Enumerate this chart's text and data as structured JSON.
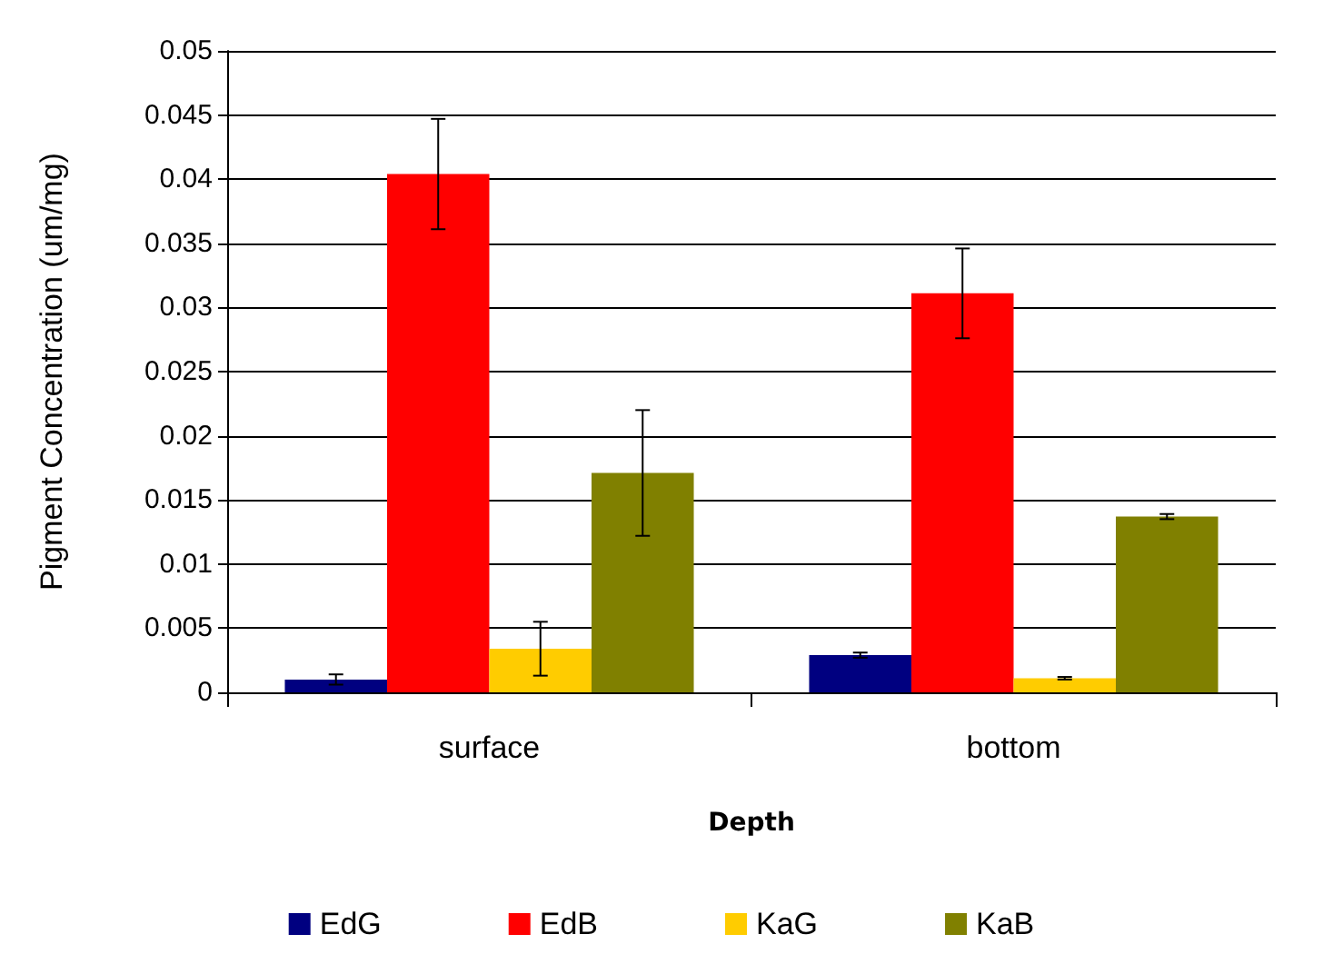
{
  "chart_data": {
    "type": "bar",
    "xlabel": "Depth",
    "ylabel": "Pigment Concentration (um/mg)",
    "categories": [
      "surface",
      "bottom"
    ],
    "series": [
      {
        "name": "EdG",
        "color": "#000080",
        "values": [
          0.001,
          0.0029
        ],
        "errors": [
          0.0004,
          0.0002
        ]
      },
      {
        "name": "EdB",
        "color": "#ff0000",
        "values": [
          0.0404,
          0.0311
        ],
        "errors": [
          0.0043,
          0.0035
        ]
      },
      {
        "name": "KaG",
        "color": "#ffcc00",
        "values": [
          0.0034,
          0.0011
        ],
        "errors": [
          0.0021,
          0.0001
        ]
      },
      {
        "name": "KaB",
        "color": "#808000",
        "values": [
          0.0171,
          0.0137
        ],
        "errors": [
          0.0049,
          0.0002
        ]
      }
    ],
    "ylim": [
      0,
      0.05
    ],
    "yticks": [
      0,
      0.005,
      0.01,
      0.015,
      0.02,
      0.025,
      0.03,
      0.035,
      0.04,
      0.045,
      0.05
    ],
    "grid": "y",
    "legend": "bottom"
  }
}
